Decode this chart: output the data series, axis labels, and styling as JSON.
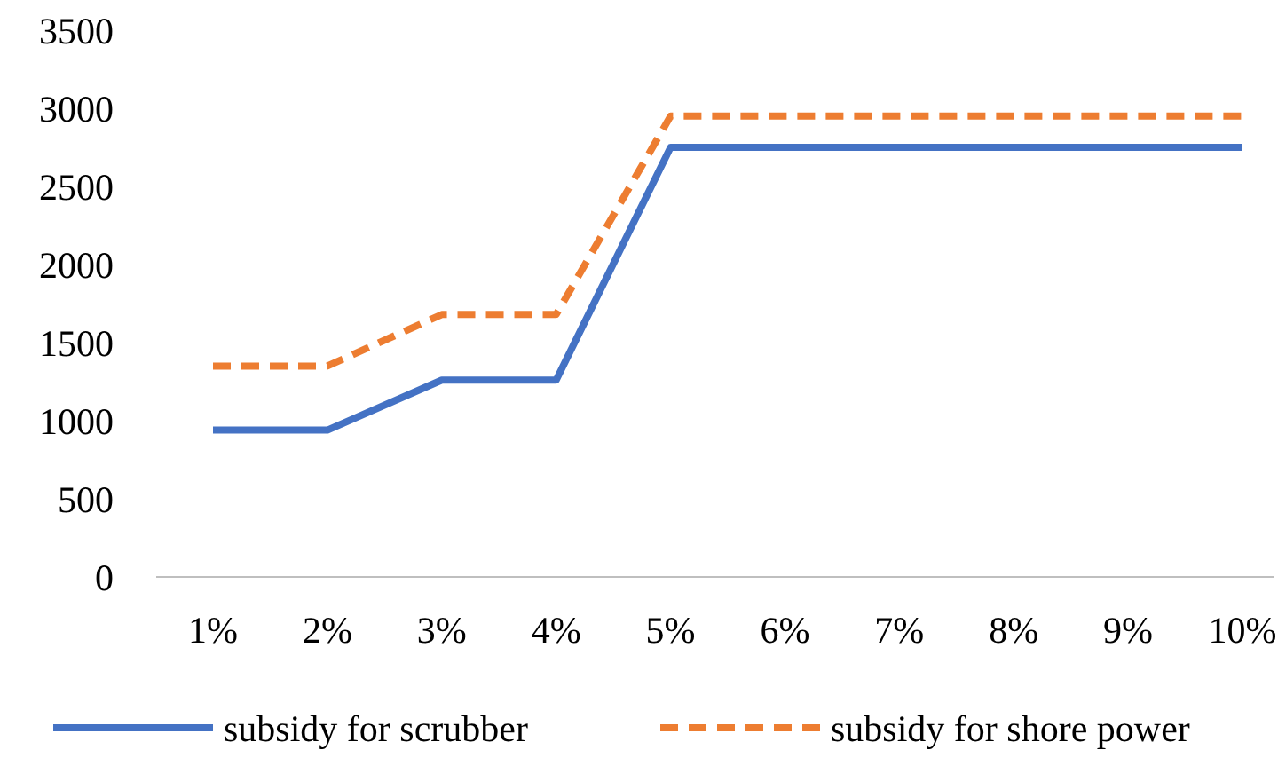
{
  "chart_data": {
    "type": "line",
    "categories": [
      "1%",
      "2%",
      "3%",
      "4%",
      "5%",
      "6%",
      "7%",
      "8%",
      "9%",
      "10%"
    ],
    "series": [
      {
        "name": "subsidy for scrubber",
        "color": "#4472c4",
        "line_style": "solid",
        "values": [
          940,
          940,
          1260,
          1260,
          2750,
          2750,
          2750,
          2750,
          2750,
          2750
        ]
      },
      {
        "name": "subsidy for shore power",
        "color": "#ed7d31",
        "line_style": "dashed",
        "values": [
          1350,
          1350,
          1680,
          1680,
          2950,
          2950,
          2950,
          2950,
          2950,
          2950
        ]
      }
    ],
    "ylim": [
      0,
      3500
    ],
    "yticks": [
      0,
      500,
      1000,
      1500,
      2000,
      2500,
      3000,
      3500
    ],
    "grid": false,
    "legend": "bottom",
    "marker": "none"
  }
}
